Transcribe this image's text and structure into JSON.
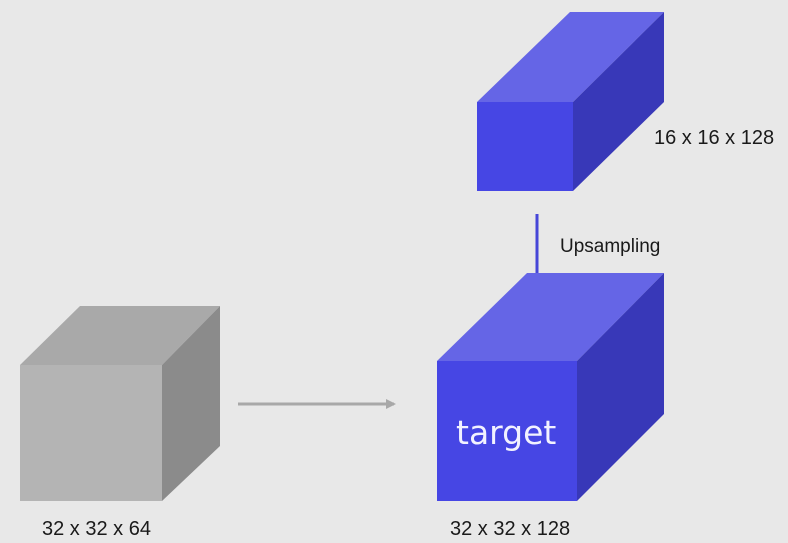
{
  "colors": {
    "background": "#e8e8e8",
    "blue_front": "#4646e4",
    "blue_top": "#6565e6",
    "blue_side": "#3838b8",
    "gray_front": "#b4b4b4",
    "gray_top": "#a9a9a9",
    "gray_side": "#8b8b8b",
    "arrow_gray": "#a8a8a8",
    "arrow_blue": "#4646d8"
  },
  "blocks": {
    "small_blue": {
      "label": "16 x 16 x 128"
    },
    "gray": {
      "label": "32 x 32 x 64"
    },
    "target": {
      "label": "32 x 32 x 128",
      "face_text": "target"
    }
  },
  "arrows": {
    "upsampling": {
      "label": "Upsampling"
    }
  }
}
